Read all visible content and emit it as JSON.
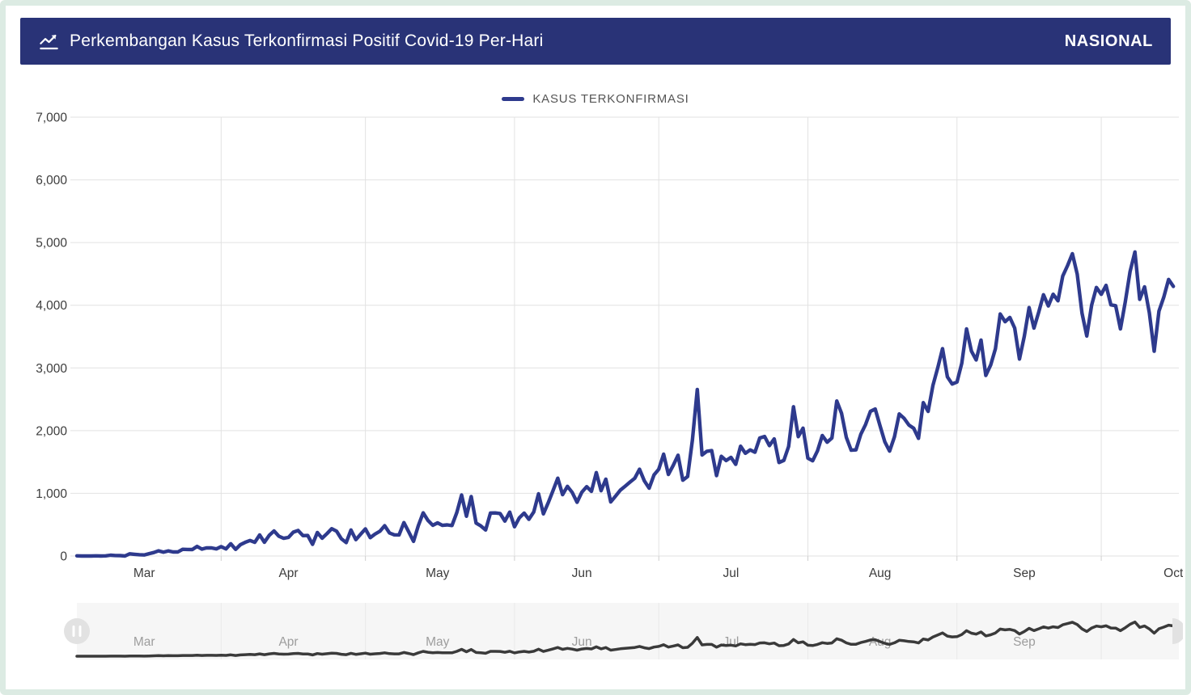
{
  "header": {
    "title": "Perkembangan Kasus Terkonfirmasi Positif Covid-19 Per-Hari",
    "region": "NASIONAL",
    "icon": "trend-line-icon"
  },
  "legend": {
    "label": "KASUS TERKONFIRMASI",
    "color": "#2e3a8d"
  },
  "colors": {
    "header_bg": "#293377",
    "line": "#2e3a8d",
    "grid": "#e2e2e2",
    "tick": "#cfcfcf",
    "axis_text": "#3c3c3c",
    "frame_border": "#dcebe3",
    "navigator_bg": "#f6f6f6",
    "navigator_grid": "#e9e9e9",
    "navigator_text": "#9d9d9d",
    "navigator_line": "#3a3a3a",
    "handle_fill": "#e2e2e2"
  },
  "navigator": {
    "month_labels": [
      "Mar",
      "Apr",
      "May",
      "Jun",
      "Jul",
      "Aug",
      "Sep"
    ],
    "left_handle_icon": "drag-handle-icon",
    "right_handle_icon": "drag-handle-icon"
  },
  "chart_data": {
    "type": "line",
    "title": "Perkembangan Kasus Terkonfirmasi Positif Covid-19 Per-Hari",
    "xlabel": "",
    "ylabel": "",
    "ylim": [
      0,
      7000
    ],
    "grid": true,
    "legend_position": "top",
    "x_tick_labels": [
      "Mar",
      "Apr",
      "May",
      "Jun",
      "Jul",
      "Aug",
      "Sep",
      "Oct"
    ],
    "y_ticks": [
      0,
      1000,
      2000,
      3000,
      4000,
      5000,
      6000,
      7000
    ],
    "y_tick_labels": [
      "0",
      "1,000",
      "2,000",
      "3,000",
      "4,000",
      "5,000",
      "6,000",
      "7,000"
    ],
    "series": [
      {
        "name": "KASUS TERKONFIRMASI",
        "color": "#2e3a8d",
        "start_date": "2020-03-02",
        "end_date": "2020-10-16",
        "values": [
          2,
          0,
          0,
          0,
          2,
          0,
          2,
          13,
          8,
          7,
          0,
          35,
          27,
          21,
          17,
          38,
          55,
          82,
          60,
          81,
          64,
          65,
          107,
          105,
          103,
          153,
          109,
          130,
          129,
          114,
          149,
          113,
          196,
          106,
          181,
          218,
          247,
          218,
          337,
          219,
          330,
          399,
          316,
          282,
          297,
          380,
          407,
          325,
          327,
          185,
          375,
          283,
          357,
          436,
          396,
          275,
          214,
          415,
          260,
          347,
          433,
          292,
          349,
          395,
          484,
          367,
          338,
          336,
          533,
          387,
          233,
          484,
          689,
          568,
          490,
          529,
          489,
          496,
          486,
          693,
          973,
          634,
          949,
          526,
          479,
          415,
          686,
          687,
          678,
          557,
          700,
          467,
          609,
          684,
          585,
          703,
          993,
          672,
          847,
          1043,
          1241,
          979,
          1111,
          1014,
          857,
          1017,
          1106,
          1031,
          1331,
          1041,
          1226,
          862,
          954,
          1051,
          1113,
          1178,
          1240,
          1385,
          1198,
          1082,
          1293,
          1385,
          1624,
          1301,
          1447,
          1607,
          1209,
          1268,
          1853,
          2657,
          1611,
          1671,
          1681,
          1282,
          1591,
          1522,
          1574,
          1462,
          1752,
          1639,
          1693,
          1655,
          1882,
          1906,
          1761,
          1868,
          1492,
          1525,
          1748,
          2381,
          1904,
          2040,
          1560,
          1519,
          1679,
          1922,
          1815,
          1882,
          2473,
          2277,
          1893,
          1687,
          1693,
          1942,
          2098,
          2307,
          2345,
          2081,
          1821,
          1673,
          1902,
          2266,
          2197,
          2090,
          2037,
          1877,
          2447,
          2306,
          2719,
          3003,
          3308,
          2858,
          2743,
          2775,
          3075,
          3622,
          3269,
          3128,
          3444,
          2880,
          3046,
          3307,
          3861,
          3737,
          3806,
          3636,
          3141,
          3507,
          3963,
          3635,
          3891,
          4168,
          3989,
          4176,
          4071,
          4465,
          4634,
          4823,
          4494,
          3874,
          3509,
          4002,
          4284,
          4174,
          4317,
          4007,
          3992,
          3622,
          4056,
          4538,
          4850,
          4094,
          4294,
          3880,
          3267,
          3906,
          4127,
          4411,
          4301
        ]
      }
    ]
  }
}
